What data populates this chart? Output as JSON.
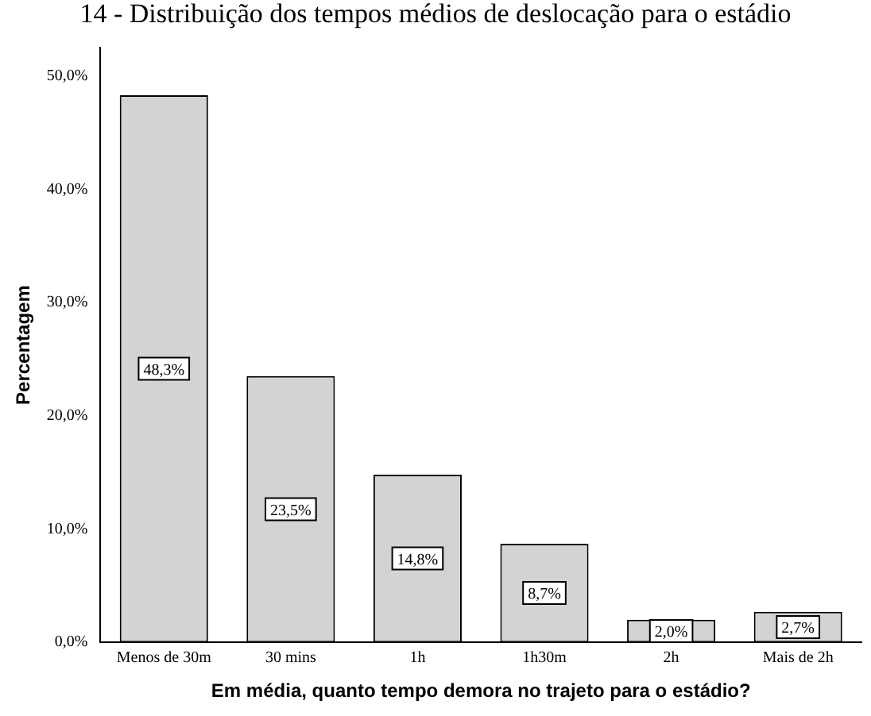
{
  "chart_data": {
    "type": "bar",
    "title": "14 - Distribuição dos tempos médios de deslocação para o estádio",
    "xlabel": "Em média, quanto tempo demora no trajeto para o estádio?",
    "ylabel": "Percentagem",
    "categories": [
      "Menos de 30m",
      "30 mins",
      "1h",
      "1h30m",
      "2h",
      "Mais de 2h"
    ],
    "values": [
      48.3,
      23.5,
      14.8,
      8.7,
      2.0,
      2.7
    ],
    "value_labels": [
      "48,3%",
      "23,5%",
      "14,8%",
      "8,7%",
      "2,0%",
      "2,7%"
    ],
    "color": "#d3d3d3",
    "ylim": [
      0,
      52.5
    ],
    "yticks": [
      {
        "value": 0,
        "label": "0,0%"
      },
      {
        "value": 10,
        "label": "10,0%"
      },
      {
        "value": 20,
        "label": "20,0%"
      },
      {
        "value": 30,
        "label": "30,0%"
      },
      {
        "value": 40,
        "label": "40,0%"
      },
      {
        "value": 50,
        "label": "50,0%"
      }
    ],
    "grid": false,
    "legend": false
  }
}
